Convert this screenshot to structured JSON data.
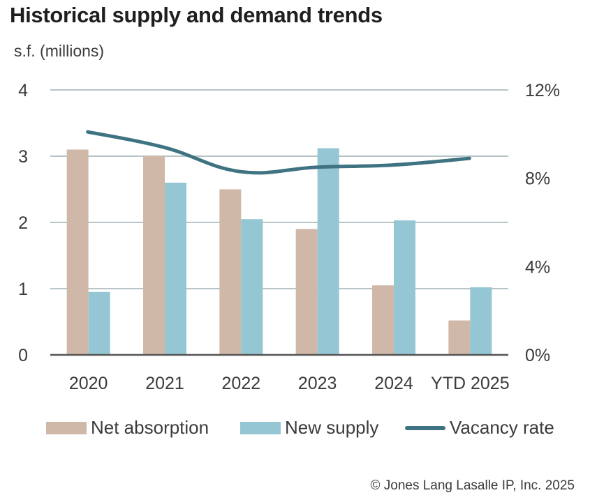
{
  "title": "Historical supply and demand trends",
  "unit_label": "s.f. (millions)",
  "source": "© Jones Lang Lasalle IP, Inc. 2025",
  "colors": {
    "net_absorption": "#d0b8a8",
    "new_supply": "#95c6d3",
    "vacancy_rate": "#3f7382",
    "grid": "#b7c4c8",
    "axis": "#555555"
  },
  "legend": {
    "net_absorption": "Net absorption",
    "new_supply": "New supply",
    "vacancy_rate": "Vacancy rate"
  },
  "chart_data": {
    "type": "bar",
    "title": "Historical supply and demand trends",
    "ylabel": "s.f. (millions)",
    "categories": [
      "2020",
      "2021",
      "2022",
      "2023",
      "2024",
      "YTD 2025"
    ],
    "ylim": [
      0,
      4
    ],
    "y_ticks": [
      "0",
      "1",
      "2",
      "3",
      "4"
    ],
    "y2lim": [
      0,
      12
    ],
    "y2_ticks": [
      "0%",
      "4%",
      "8%",
      "12%"
    ],
    "grid": true,
    "legend_position": "bottom",
    "series": [
      {
        "name": "Net absorption",
        "type": "bar",
        "axis": "left",
        "values": [
          3.1,
          3.0,
          2.5,
          1.9,
          1.05,
          0.52
        ]
      },
      {
        "name": "New supply",
        "type": "bar",
        "axis": "left",
        "values": [
          0.95,
          2.6,
          2.05,
          3.12,
          2.03,
          1.02
        ]
      },
      {
        "name": "Vacancy rate",
        "type": "line",
        "axis": "right",
        "unit": "%",
        "values": [
          10.1,
          9.4,
          8.3,
          8.5,
          8.6,
          8.9
        ]
      }
    ]
  }
}
